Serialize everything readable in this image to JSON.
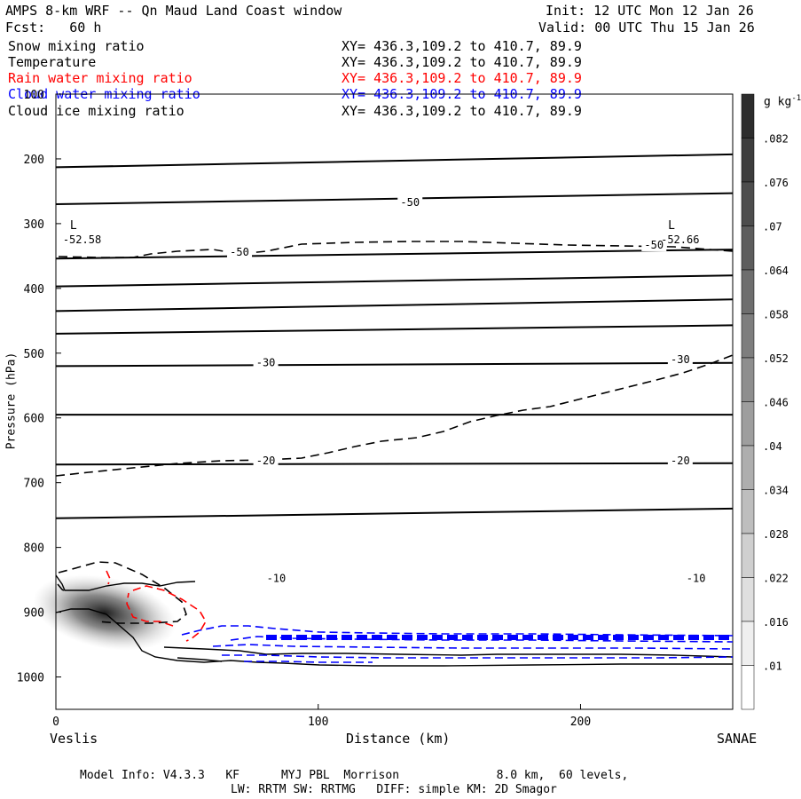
{
  "header": {
    "title": "AMPS 8-km WRF -- Qn Maud Land Coast window",
    "init": "Init: 12 UTC Mon 12 Jan 26",
    "fcst": "Fcst:   60 h",
    "valid": "Valid: 00 UTC Thu 15 Jan 26"
  },
  "fields": [
    {
      "name": "Snow mixing ratio",
      "xy": "XY= 436.3,109.2 to 410.7, 89.9",
      "color": "#000000"
    },
    {
      "name": "Temperature",
      "xy": "XY= 436.3,109.2 to 410.7, 89.9",
      "color": "#000000"
    },
    {
      "name": "Rain water mixing ratio",
      "xy": "XY= 436.3,109.2 to 410.7, 89.9",
      "color": "#ff0000"
    },
    {
      "name": "Cloud water mixing ratio",
      "xy": "XY= 436.3,109.2 to 410.7, 89.9",
      "color": "#0000ff"
    },
    {
      "name": "Cloud ice mixing ratio",
      "xy": "XY= 436.3,109.2 to 410.7, 89.9",
      "color": "#000000"
    }
  ],
  "chart_data": {
    "type": "cross-section contour",
    "xlabel": "Distance (km)",
    "ylabel": "Pressure (hPa)",
    "xlim": [
      0,
      258
    ],
    "ylim": [
      1050,
      100
    ],
    "xticks": [
      0,
      100,
      200
    ],
    "yticks": [
      100,
      200,
      300,
      400,
      500,
      600,
      700,
      800,
      900,
      1000
    ],
    "left_end": "Veslis",
    "right_end": "SANAE",
    "temperature_isotherm_labels": [
      {
        "text": "-50",
        "x": 135,
        "p": 267
      },
      {
        "text": "-50",
        "x": 70,
        "p": 344
      },
      {
        "text": "-50",
        "x": 228,
        "p": 333
      },
      {
        "text": "-30",
        "x": 80,
        "p": 515
      },
      {
        "text": "-30",
        "x": 238,
        "p": 510
      },
      {
        "text": "-20",
        "x": 80,
        "p": 666
      },
      {
        "text": "-20",
        "x": 238,
        "p": 666
      },
      {
        "text": "-10",
        "x": 84,
        "p": 848
      },
      {
        "text": "-10",
        "x": 244,
        "p": 848
      }
    ],
    "isotherm_pressures": {
      "left": [
        213,
        270,
        354,
        397,
        435,
        470,
        520,
        595,
        672,
        755
      ],
      "right": [
        193,
        253,
        340,
        380,
        417,
        457,
        515,
        595,
        670,
        740
      ]
    },
    "minima": [
      {
        "letter": "L",
        "value": "-52.58",
        "x": 4,
        "p": 322
      },
      {
        "letter": "L",
        "value": "-52.66",
        "x": 232,
        "p": 322
      }
    ],
    "colorbar": {
      "unit": "g kg",
      "unit_sup": "-1",
      "labels": [
        ".082",
        ".076",
        ".07",
        ".064",
        ".058",
        ".052",
        ".046",
        ".04",
        ".034",
        ".028",
        ".022",
        ".016",
        ".01"
      ]
    }
  },
  "footer": {
    "line1": "Model Info: V4.3.3   KF      MYJ PBL  Morrison              8.0 km,  60 levels,",
    "line2": "LW: RRTM SW: RRTMG   DIFF: simple KM: 2D Smagor"
  }
}
